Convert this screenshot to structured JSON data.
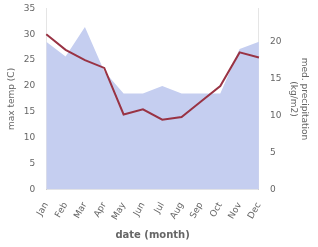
{
  "chart_data": {
    "type": "line",
    "categories": [
      "Jan",
      "Feb",
      "Mar",
      "Apr",
      "May",
      "Jun",
      "Jul",
      "Aug",
      "Sep",
      "Oct",
      "Nov",
      "Dec"
    ],
    "xlabel": "date (month)",
    "ylabel": "max temp (C)",
    "y2label": "med. precipitation\n(kg/m2)",
    "ylim": [
      0,
      35
    ],
    "yticks": [
      0,
      5,
      10,
      15,
      20,
      25,
      30,
      35
    ],
    "y2lim": [
      0,
      24.5
    ],
    "y2ticks": [
      0,
      5,
      10,
      15,
      20
    ],
    "grid": false,
    "series": [
      {
        "type": "area",
        "axis": "y2",
        "color": "#c5cef0",
        "values": [
          20.0,
          18.0,
          22.0,
          16.0,
          13.0,
          13.0,
          14.0,
          13.0,
          13.0,
          13.0,
          19.0,
          20.0
        ]
      },
      {
        "type": "line",
        "axis": "y",
        "color": "#993344",
        "values": [
          30.0,
          27.0,
          25.0,
          23.5,
          14.5,
          15.5,
          13.5,
          14.0,
          17.0,
          20.0,
          26.5,
          25.5
        ]
      }
    ]
  }
}
